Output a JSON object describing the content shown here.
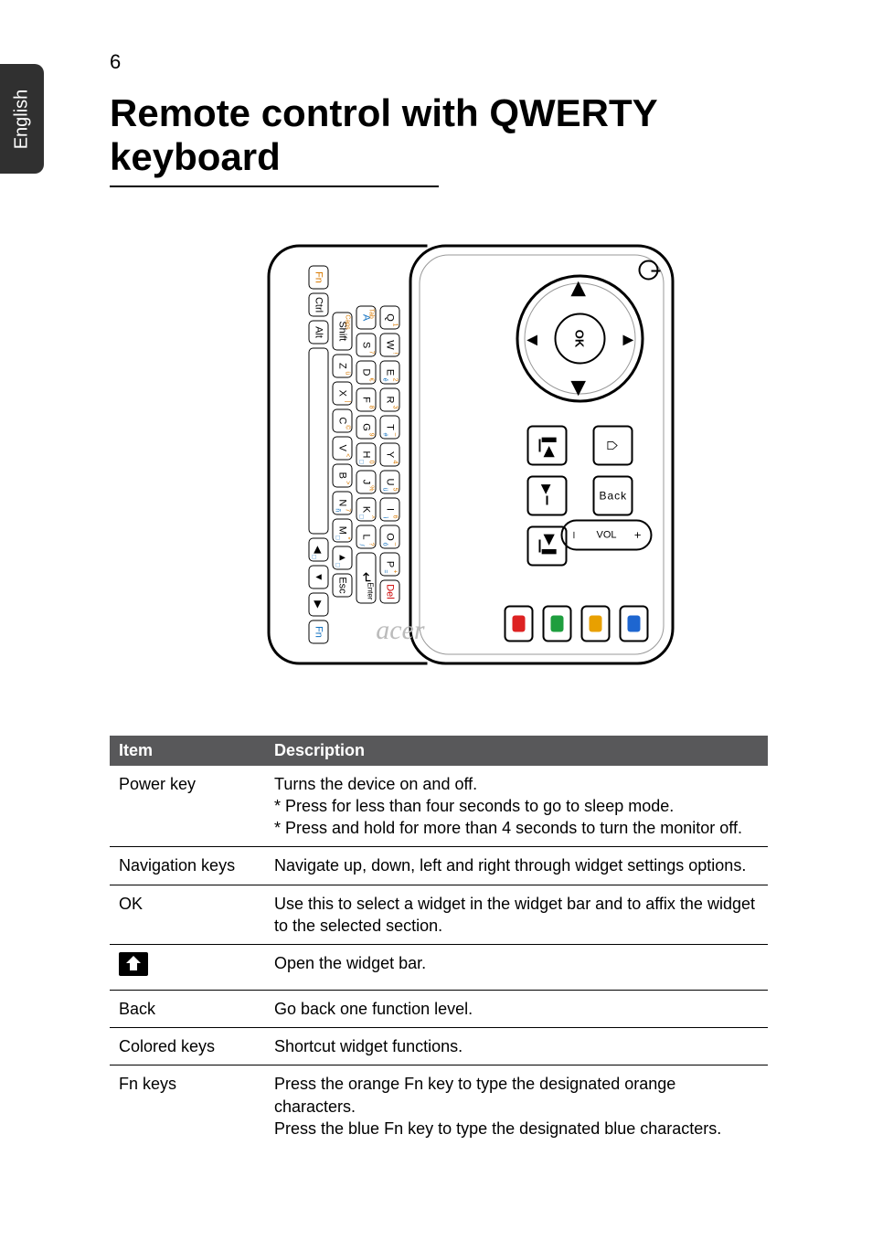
{
  "page_number": "6",
  "side_tab": "English",
  "title": "Remote control with QWERTY keyboard",
  "remote": {
    "ok": "OK",
    "back": "Back",
    "vol": {
      "plus": "+",
      "label": "VOL",
      "minus": "–"
    },
    "home_glyph": "⌂",
    "prev": "",
    "playpause": "▶/❚❚",
    "next": "",
    "color_keys": [
      "#1e66d0",
      "#e8a000",
      "#1e9e3e",
      "#d22"
    ],
    "logo": "acer",
    "keyboard": {
      "row1": [
        {
          "k": "Q",
          "s": "1"
        },
        {
          "k": "W",
          "s": "!"
        },
        {
          "k": "E",
          "s": "2",
          "b": "é"
        },
        {
          "k": "R",
          "s": "3"
        },
        {
          "k": "T",
          "s": "–",
          "b": "#"
        },
        {
          "k": "Y",
          "s": "4"
        },
        {
          "k": "U",
          "s": "5",
          "b": "ü"
        },
        {
          "k": "I",
          "s": "6",
          "b": "ì"
        },
        {
          "k": "O",
          "s": "–",
          "b": "ó"
        },
        {
          "k": "P",
          "s": "+",
          "b": "="
        },
        {
          "k": "Del",
          "cls": "del"
        }
      ],
      "row2": [
        {
          "k": "A",
          "pre": "Tab",
          "cls": "fnblue",
          "preCls": "fnorange"
        },
        {
          "k": "S",
          "s": "7"
        },
        {
          "k": "D",
          "s": "€"
        },
        {
          "k": "F",
          "s": "8"
        },
        {
          "k": "G",
          "s": "9"
        },
        {
          "k": "H",
          "s": "0",
          "b": "□"
        },
        {
          "k": "J",
          "s": "%"
        },
        {
          "k": "K",
          "s": "^",
          "b": "□"
        },
        {
          "k": "L",
          "s": "?",
          "b": "/"
        },
        {
          "k": "Enter",
          "cls": "xwide"
        }
      ],
      "row3": [
        {
          "k": "Shift",
          "cls": "wide",
          "pre": "Caps",
          "preCls": "fnorange"
        },
        {
          "k": "Z",
          "s": "ü"
        },
        {
          "k": "X",
          "s": "|"
        },
        {
          "k": "C",
          "s": "©"
        },
        {
          "k": "V",
          "s": "<"
        },
        {
          "k": "B",
          "s": ">"
        },
        {
          "k": "N",
          "s": "7",
          "b": "ñ"
        },
        {
          "k": "M",
          "s": "*",
          "b": "□"
        },
        {
          "k": "▲",
          "s": "",
          "b": "□"
        },
        {
          "k": "Esc"
        }
      ],
      "row4": [
        {
          "k": "Fn",
          "cls": "fnorange"
        },
        {
          "k": "Ctrl"
        },
        {
          "k": "Alt"
        },
        {
          "k": " ",
          "cls": "space"
        },
        {
          "k": "◀",
          "b": "□"
        },
        {
          "k": "▼"
        },
        {
          "k": "▶"
        },
        {
          "k": "Fn",
          "cls": "fnblue"
        }
      ]
    }
  },
  "table": {
    "head": [
      "Item",
      "Description"
    ],
    "rows": [
      {
        "item": "Power key",
        "desc": "Turns the device on and off.\n* Press for less than four seconds to go to sleep mode.\n* Press and hold for more than 4 seconds to turn the monitor off."
      },
      {
        "item": "Navigation keys",
        "desc": "Navigate up, down, left and right through widget settings options."
      },
      {
        "item": "OK",
        "desc": "Use this to select a widget in the widget bar and to affix the widget to the selected section."
      },
      {
        "item": "__HOME_ICON__",
        "desc": "Open the widget bar."
      },
      {
        "item": "Back",
        "desc": "Go back one function level."
      },
      {
        "item": "Colored keys",
        "desc": "Shortcut widget functions."
      },
      {
        "item": "Fn keys",
        "desc": "Press the orange Fn key to type the designated orange characters.\nPress the blue Fn key to type the designated blue characters."
      }
    ]
  },
  "colors": {
    "header_bg": "#58585a",
    "header_fg": "#ffffff",
    "rule": "#000000",
    "fn_orange": "#d97a00",
    "fn_blue": "#1070c0"
  }
}
